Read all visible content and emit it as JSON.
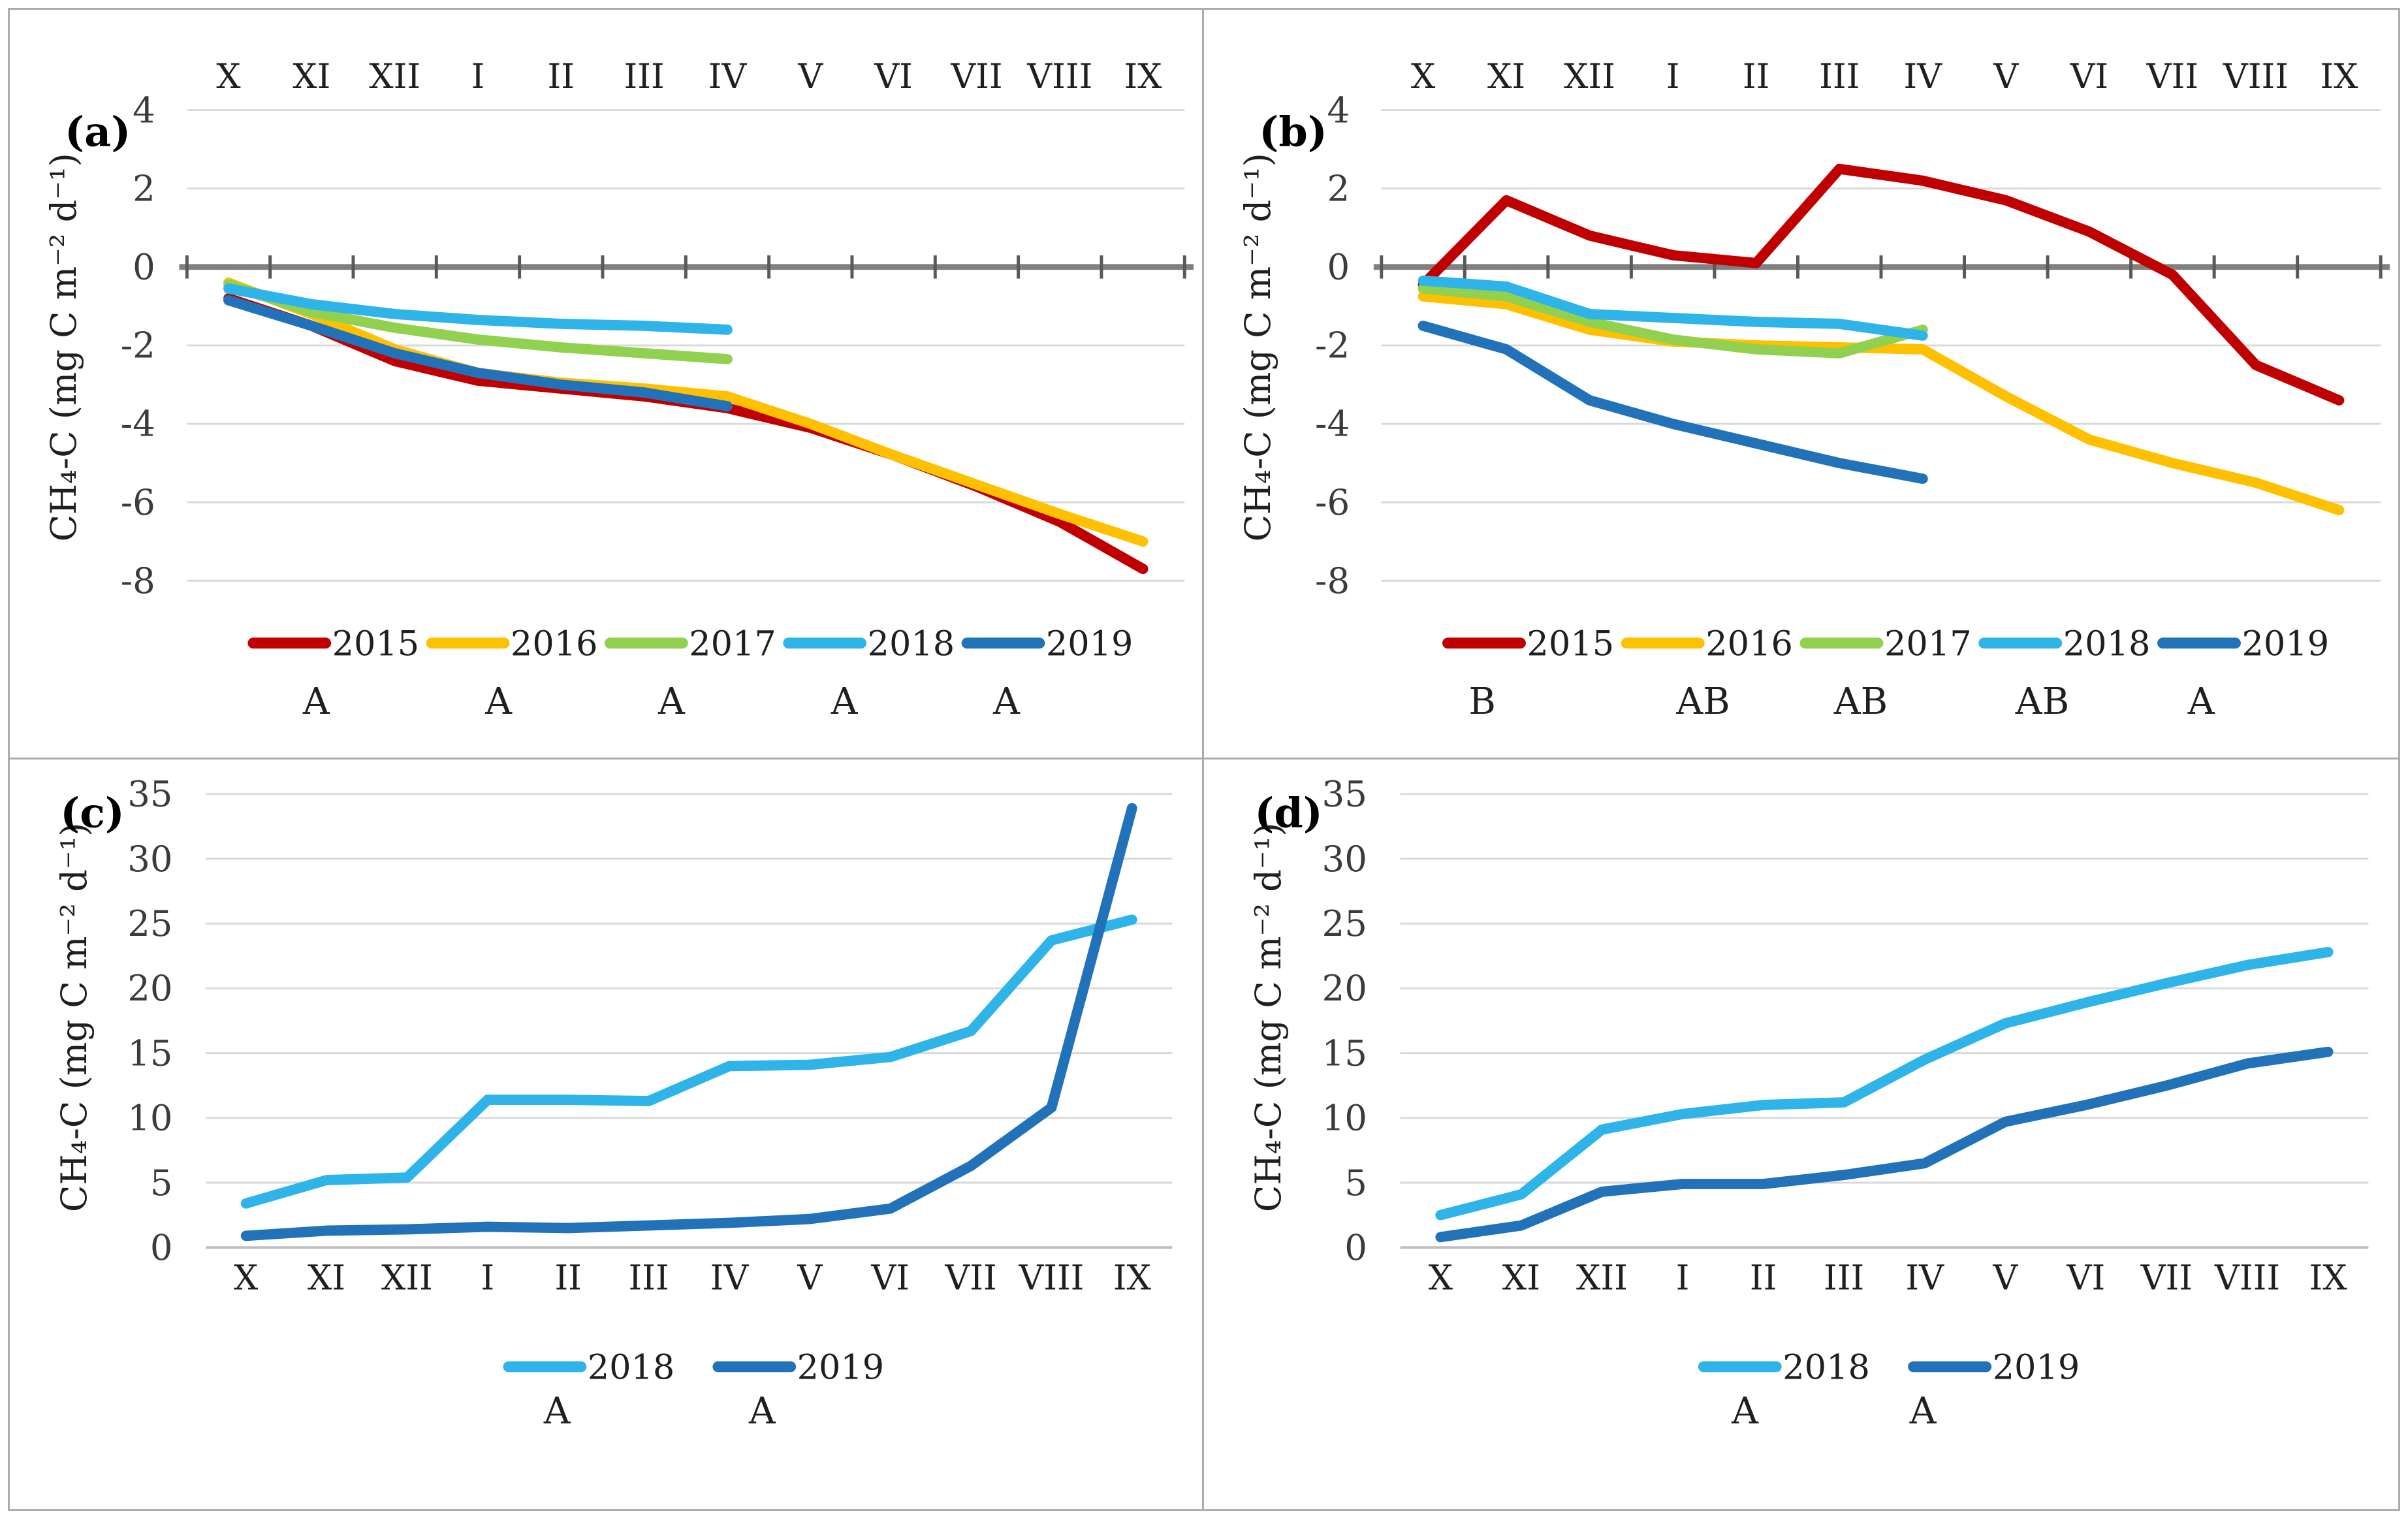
{
  "figure": {
    "background": "#FFFFFF",
    "border_color": "#ACACAC",
    "axis_title": "CH₄-C (mg C m⁻² d⁻¹)",
    "months": [
      "X",
      "XI",
      "XII",
      "I",
      "II",
      "III",
      "IV",
      "V",
      "VI",
      "VII",
      "VIII",
      "IX"
    ]
  },
  "chart_data": [
    {
      "type": "line",
      "panel_label": "(a)",
      "ylabel": "CH₄-C (mg C m⁻² d⁻¹)",
      "categories": [
        "X",
        "XI",
        "XII",
        "I",
        "II",
        "III",
        "IV",
        "V",
        "VI",
        "VII",
        "VIII",
        "IX"
      ],
      "x_axis_labels_position": "top",
      "ylim": [
        -8,
        4
      ],
      "yticks": [
        4,
        2,
        0,
        -2,
        -4,
        -6,
        -8
      ],
      "grid": true,
      "legend_position": "bottom",
      "series": [
        {
          "name": "2015",
          "color": "#C00000",
          "values": [
            -0.8,
            -1.5,
            -2.4,
            -2.9,
            -3.1,
            -3.3,
            -3.6,
            -4.1,
            -4.8,
            -5.6,
            -6.5,
            -7.7
          ]
        },
        {
          "name": "2016",
          "color": "#FFC000",
          "values": [
            -0.4,
            -1.2,
            -2.1,
            -2.7,
            -2.95,
            -3.1,
            -3.3,
            -4.0,
            -4.8,
            -5.55,
            -6.3,
            -7.0
          ]
        },
        {
          "name": "2017",
          "color": "#92D050",
          "values": [
            -0.45,
            -1.15,
            -1.55,
            -1.85,
            -2.05,
            -2.2,
            -2.35
          ]
        },
        {
          "name": "2018",
          "color": "#2FB4E9",
          "values": [
            -0.55,
            -0.95,
            -1.2,
            -1.35,
            -1.45,
            -1.5,
            -1.6
          ]
        },
        {
          "name": "2019",
          "color": "#2272B9",
          "values": [
            -0.85,
            -1.5,
            -2.2,
            -2.7,
            -3.0,
            -3.2,
            -3.55
          ]
        }
      ],
      "significance_letters": [
        {
          "text": "A",
          "fx": 0.257
        },
        {
          "text": "A",
          "fx": 0.41
        },
        {
          "text": "A",
          "fx": 0.555
        },
        {
          "text": "A",
          "fx": 0.7
        },
        {
          "text": "A",
          "fx": 0.836
        }
      ]
    },
    {
      "type": "line",
      "panel_label": "(b)",
      "ylabel": "CH₄-C (mg C m⁻² d⁻¹)",
      "categories": [
        "X",
        "XI",
        "XII",
        "I",
        "II",
        "III",
        "IV",
        "V",
        "VI",
        "VII",
        "VIII",
        "IX"
      ],
      "x_axis_labels_position": "top",
      "ylim": [
        -8,
        4
      ],
      "yticks": [
        4,
        2,
        0,
        -2,
        -4,
        -6,
        -8
      ],
      "grid": true,
      "legend_position": "bottom",
      "series": [
        {
          "name": "2015",
          "color": "#C00000",
          "values": [
            -0.45,
            1.7,
            0.8,
            0.3,
            0.1,
            2.5,
            2.2,
            1.7,
            0.9,
            -0.2,
            -2.5,
            -3.4
          ]
        },
        {
          "name": "2016",
          "color": "#FFC000",
          "values": [
            -0.75,
            -0.95,
            -1.6,
            -1.9,
            -2.0,
            -2.05,
            -2.1,
            -3.3,
            -4.4,
            -5.0,
            -5.5,
            -6.2
          ]
        },
        {
          "name": "2017",
          "color": "#92D050",
          "values": [
            -0.55,
            -0.75,
            -1.4,
            -1.85,
            -2.1,
            -2.2,
            -1.6
          ]
        },
        {
          "name": "2018",
          "color": "#2FB4E9",
          "values": [
            -0.35,
            -0.5,
            -1.2,
            -1.3,
            -1.4,
            -1.45,
            -1.75
          ]
        },
        {
          "name": "2019",
          "color": "#2272B9",
          "values": [
            -1.5,
            -2.1,
            -3.4,
            -4.0,
            -4.5,
            -5.0,
            -5.4
          ]
        }
      ],
      "significance_letters": [
        {
          "text": "B",
          "fx": 0.233
        },
        {
          "text": "AB",
          "fx": 0.418
        },
        {
          "text": "AB",
          "fx": 0.55
        },
        {
          "text": "AB",
          "fx": 0.702
        },
        {
          "text": "A",
          "fx": 0.835
        }
      ]
    },
    {
      "type": "line",
      "panel_label": "(c)",
      "ylabel": "CH₄-C (mg C m⁻² d⁻¹)",
      "categories": [
        "X",
        "XI",
        "XII",
        "I",
        "II",
        "III",
        "IV",
        "V",
        "VI",
        "VII",
        "VIII",
        "IX"
      ],
      "x_axis_labels_position": "bottom",
      "ylim": [
        0,
        35
      ],
      "yticks": [
        35,
        30,
        25,
        20,
        15,
        10,
        5,
        0
      ],
      "grid": true,
      "legend_position": "bottom",
      "series": [
        {
          "name": "2018",
          "color": "#2FB4E9",
          "values": [
            3.4,
            5.2,
            5.4,
            11.4,
            11.4,
            11.3,
            14.0,
            14.1,
            14.7,
            16.7,
            23.7,
            25.3
          ]
        },
        {
          "name": "2019",
          "color": "#2272B9",
          "values": [
            0.9,
            1.3,
            1.4,
            1.6,
            1.5,
            1.7,
            1.9,
            2.2,
            3.0,
            6.3,
            10.8,
            33.9
          ]
        }
      ],
      "significance_letters": [
        {
          "text": "A",
          "fx": 0.459
        },
        {
          "text": "A",
          "fx": 0.631
        }
      ]
    },
    {
      "type": "line",
      "panel_label": "(d)",
      "ylabel": "CH₄-C (mg C m⁻² d⁻¹)",
      "categories": [
        "X",
        "XI",
        "XII",
        "I",
        "II",
        "III",
        "IV",
        "V",
        "VI",
        "VII",
        "VIII",
        "IX"
      ],
      "x_axis_labels_position": "bottom",
      "ylim": [
        0,
        35
      ],
      "yticks": [
        35,
        30,
        25,
        20,
        15,
        10,
        5,
        0
      ],
      "grid": true,
      "legend_position": "bottom",
      "series": [
        {
          "name": "2018",
          "color": "#2FB4E9",
          "values": [
            2.5,
            4.1,
            9.1,
            10.3,
            11.0,
            11.2,
            14.5,
            17.3,
            18.9,
            20.4,
            21.8,
            22.8
          ]
        },
        {
          "name": "2019",
          "color": "#2272B9",
          "values": [
            0.8,
            1.7,
            4.3,
            4.9,
            4.9,
            5.6,
            6.5,
            9.7,
            11.0,
            12.5,
            14.2,
            15.1
          ]
        }
      ],
      "significance_letters": [
        {
          "text": "A",
          "fx": 0.453
        },
        {
          "text": "A",
          "fx": 0.602
        }
      ]
    }
  ]
}
